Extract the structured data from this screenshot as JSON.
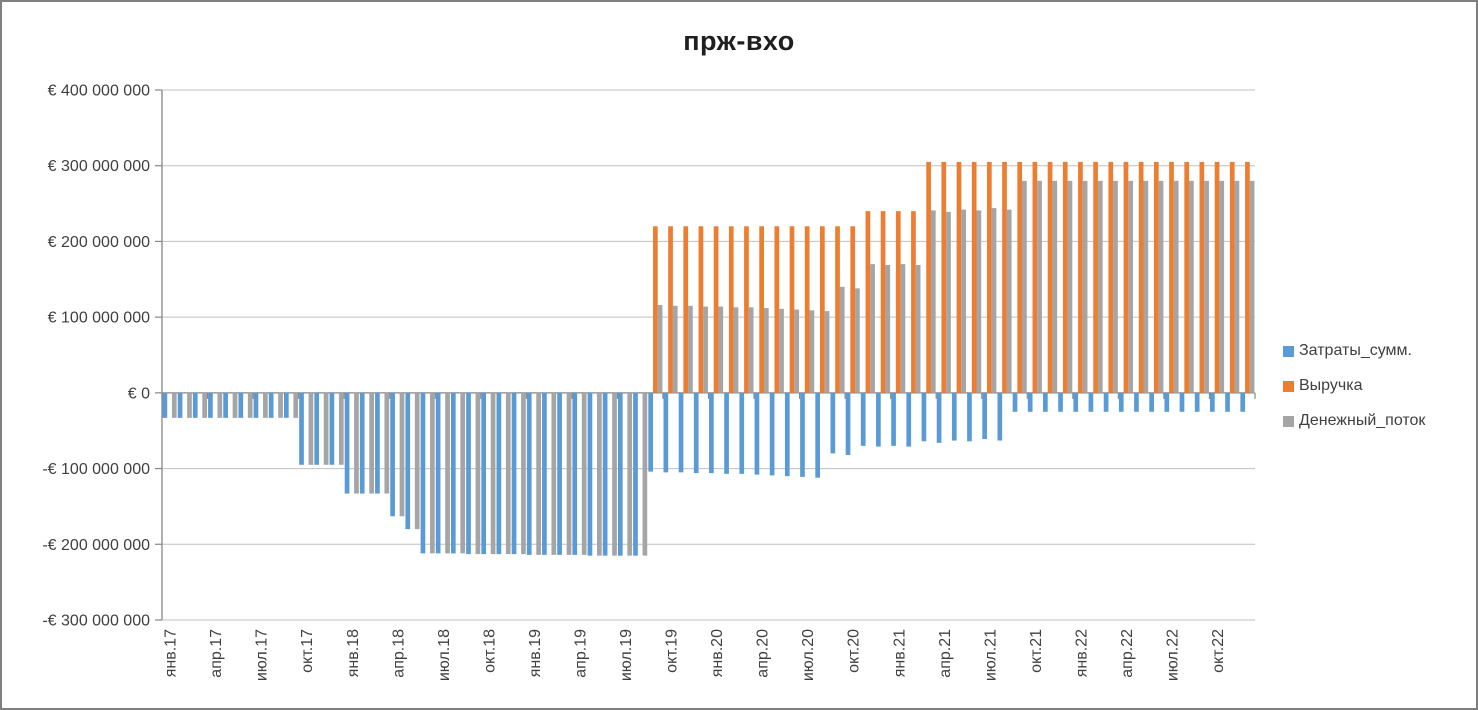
{
  "chart_data": {
    "type": "bar",
    "title": "прж-вхо",
    "xlabel": "",
    "ylabel": "",
    "unit": "EUR",
    "values_unit": "millions of EUR",
    "grid": true,
    "legend_position": "right",
    "ylim_millions": [
      -300,
      400
    ],
    "x_label_interval_months": 3,
    "x_tick_labels": [
      "янв.17",
      "апр.17",
      "июл.17",
      "окт.17",
      "янв.18",
      "апр.18",
      "июл.18",
      "окт.18",
      "янв.19",
      "апр.19",
      "июл.19",
      "окт.19",
      "янв.20",
      "апр.20",
      "июл.20",
      "окт.20",
      "янв.21",
      "апр.21",
      "июл.21",
      "окт.21",
      "янв.22",
      "апр.22",
      "июл.22",
      "окт.22"
    ],
    "y_ticks": [
      {
        "label": "€ 400 000 000",
        "value_millions": 400
      },
      {
        "label": "€ 300 000 000",
        "value_millions": 300
      },
      {
        "label": "€ 200 000 000",
        "value_millions": 200
      },
      {
        "label": "€ 100 000 000",
        "value_millions": 100
      },
      {
        "label": "€ 0",
        "value_millions": 0
      },
      {
        "label": "-€ 100 000 000",
        "value_millions": -100
      },
      {
        "label": "-€ 200 000 000",
        "value_millions": -200
      },
      {
        "label": "-€ 300 000 000",
        "value_millions": -300
      }
    ],
    "series": [
      {
        "name": "Затраты_сумм.",
        "color": "#5B9BD5",
        "values": [
          -33,
          -33,
          -33,
          -33,
          -33,
          -33,
          -33,
          -33,
          -33,
          -95,
          -95,
          -95,
          -133,
          -133,
          -133,
          -163,
          -180,
          -212,
          -212,
          -212,
          -213,
          -213,
          -213,
          -213,
          -214,
          -214,
          -214,
          -214,
          -215,
          -215,
          -215,
          -215,
          -104,
          -105,
          -105,
          -106,
          -106,
          -107,
          -107,
          -108,
          -109,
          -110,
          -111,
          -112,
          -80,
          -82,
          -70,
          -71,
          -70,
          -71,
          -64,
          -66,
          -63,
          -64,
          -61,
          -63,
          -25,
          -25,
          -25,
          -25,
          -25,
          -25,
          -25,
          -25,
          -25,
          -25,
          -25,
          -25,
          -25,
          -25,
          -25,
          -25
        ]
      },
      {
        "name": "Выручка",
        "color": "#ED7D31",
        "values": [
          0,
          0,
          0,
          0,
          0,
          0,
          0,
          0,
          0,
          0,
          0,
          0,
          0,
          0,
          0,
          0,
          0,
          0,
          0,
          0,
          0,
          0,
          0,
          0,
          0,
          0,
          0,
          0,
          0,
          0,
          0,
          0,
          220,
          220,
          220,
          220,
          220,
          220,
          220,
          220,
          220,
          220,
          220,
          220,
          220,
          220,
          240,
          240,
          240,
          240,
          305,
          305,
          305,
          305,
          305,
          305,
          305,
          305,
          305,
          305,
          305,
          305,
          305,
          305,
          305,
          305,
          305,
          305,
          305,
          305,
          305,
          305
        ]
      },
      {
        "name": "Денежный_поток",
        "color": "#A5A5A5",
        "values": [
          -33,
          -33,
          -33,
          -33,
          -33,
          -33,
          -33,
          -33,
          -33,
          -95,
          -95,
          -95,
          -133,
          -133,
          -133,
          -163,
          -180,
          -212,
          -212,
          -212,
          -213,
          -213,
          -213,
          -213,
          -214,
          -214,
          -214,
          -214,
          -215,
          -215,
          -215,
          -215,
          116,
          115,
          115,
          114,
          114,
          113,
          113,
          112,
          111,
          110,
          109,
          108,
          140,
          138,
          170,
          169,
          170,
          169,
          241,
          239,
          242,
          241,
          244,
          242,
          280,
          280,
          280,
          280,
          280,
          280,
          280,
          280,
          280,
          280,
          280,
          280,
          280,
          280,
          280,
          280
        ]
      }
    ]
  }
}
